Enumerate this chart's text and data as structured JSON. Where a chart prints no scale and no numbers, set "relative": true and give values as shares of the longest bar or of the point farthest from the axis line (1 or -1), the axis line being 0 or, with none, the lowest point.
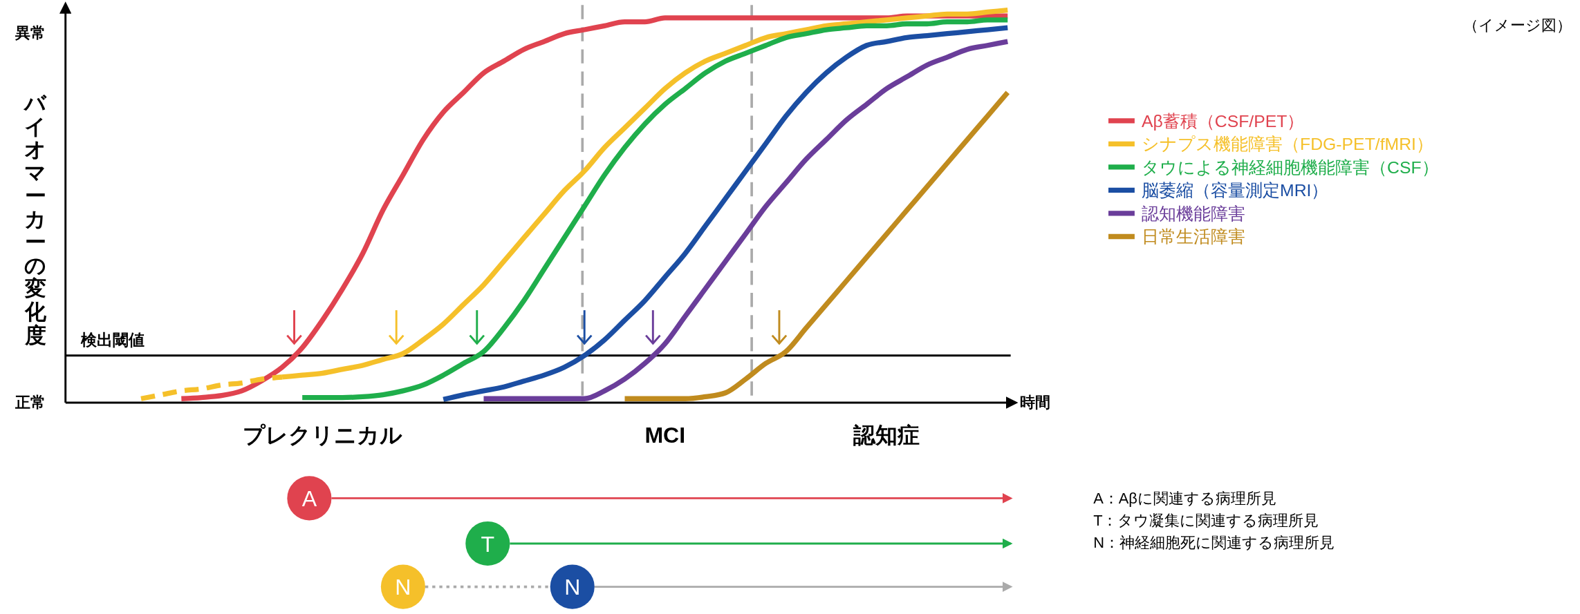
{
  "chart_data": {
    "type": "line",
    "relative": true,
    "ylabel": "バイオマーカーの変化度",
    "xlabel": "時間",
    "legend": "right",
    "categories": [
      null,
      null,
      null,
      null,
      null,
      null,
      null,
      null,
      null,
      "プレクリニカル",
      null,
      null,
      null,
      null,
      null,
      null,
      null,
      null,
      null,
      null,
      null,
      null,
      null,
      null,
      null,
      null,
      "MCI",
      null,
      null,
      null,
      null,
      null,
      null,
      null,
      null,
      null,
      null,
      "認知症",
      null,
      null,
      null,
      null,
      null,
      null
    ],
    "series": [
      {
        "name": "Aβ蓄積（CSF/PET）",
        "color": "#e0434f",
        "values": [
          null,
          null,
          0.01,
          0.013,
          0.018,
          0.03,
          0.056,
          0.09,
          0.14,
          0.21,
          0.29,
          0.38,
          0.49,
          0.58,
          0.67,
          0.74,
          0.79,
          0.84,
          0.87,
          0.9,
          0.92,
          0.94,
          0.95,
          0.96,
          0.97,
          0.97,
          0.98,
          0.98,
          0.98,
          0.98,
          0.98,
          0.98,
          0.98,
          0.98,
          0.98,
          0.98,
          0.98,
          0.98,
          0.985,
          0.985,
          0.985,
          0.985,
          0.985,
          0.985
        ]
      },
      {
        "color": "#f5c02a",
        "line_style": "dashed",
        "values": [
          0.01,
          0.02,
          0.03,
          0.035,
          0.045,
          0.05,
          0.06,
          0.065,
          null,
          null,
          null,
          null,
          null,
          null,
          null,
          null,
          null,
          null,
          null,
          null,
          null,
          null,
          null,
          null,
          null,
          null,
          null,
          null,
          null,
          null,
          null,
          null,
          null,
          null,
          null,
          null,
          null,
          null,
          null,
          null,
          null,
          null,
          null,
          null
        ]
      },
      {
        "name": "シナプス機能障害（FDG-PET/fMRI）",
        "color": "#f5c02a",
        "values": [
          null,
          null,
          null,
          null,
          null,
          null,
          null,
          0.065,
          0.07,
          0.075,
          0.085,
          0.095,
          0.11,
          0.125,
          0.16,
          0.2,
          0.25,
          0.3,
          0.36,
          0.42,
          0.48,
          0.54,
          0.59,
          0.65,
          0.7,
          0.75,
          0.8,
          0.84,
          0.87,
          0.89,
          0.91,
          0.93,
          0.94,
          0.95,
          0.96,
          0.965,
          0.97,
          0.975,
          0.98,
          0.985,
          0.99,
          0.99,
          0.995,
          1.0
        ]
      },
      {
        "name": "タウによる神経細胞機能障害（CSF）",
        "color": "#1fae4b",
        "values": [
          null,
          null,
          null,
          null,
          null,
          null,
          null,
          null,
          0.013,
          0.013,
          0.013,
          0.015,
          0.02,
          0.03,
          0.045,
          0.07,
          0.1,
          0.13,
          0.19,
          0.26,
          0.34,
          0.42,
          0.5,
          0.58,
          0.65,
          0.71,
          0.76,
          0.8,
          0.84,
          0.87,
          0.89,
          0.91,
          0.93,
          0.94,
          0.95,
          0.955,
          0.96,
          0.96,
          0.965,
          0.965,
          0.97,
          0.97,
          0.975,
          0.975
        ]
      },
      {
        "name": "脳萎縮（容量測定MRI）",
        "color": "#1b4ea3",
        "values": [
          null,
          null,
          null,
          null,
          null,
          null,
          null,
          null,
          null,
          null,
          null,
          null,
          null,
          null,
          null,
          0.008,
          0.02,
          0.03,
          0.04,
          0.055,
          0.07,
          0.09,
          0.12,
          0.16,
          0.21,
          0.26,
          0.32,
          0.38,
          0.45,
          0.52,
          0.59,
          0.66,
          0.73,
          0.79,
          0.84,
          0.88,
          0.91,
          0.92,
          0.93,
          0.935,
          0.94,
          0.945,
          0.95,
          0.955
        ]
      },
      {
        "name": "認知機能障害",
        "color": "#6a3d9a",
        "values": [
          null,
          null,
          null,
          null,
          null,
          null,
          null,
          null,
          null,
          null,
          null,
          null,
          null,
          null,
          null,
          null,
          null,
          0.01,
          0.01,
          0.01,
          0.01,
          0.01,
          0.01,
          0.03,
          0.06,
          0.1,
          0.15,
          0.22,
          0.29,
          0.36,
          0.43,
          0.5,
          0.56,
          0.62,
          0.67,
          0.72,
          0.76,
          0.8,
          0.83,
          0.86,
          0.88,
          0.9,
          0.91,
          0.92
        ]
      },
      {
        "name": "日常生活障害",
        "color": "#c08b1e",
        "values": [
          null,
          null,
          null,
          null,
          null,
          null,
          null,
          null,
          null,
          null,
          null,
          null,
          null,
          null,
          null,
          null,
          null,
          null,
          null,
          null,
          null,
          null,
          null,
          null,
          0.01,
          0.01,
          0.01,
          0.01,
          0.015,
          0.025,
          0.06,
          0.1,
          0.13,
          0.19,
          0.25,
          0.31,
          0.37,
          0.43,
          0.49,
          0.55,
          0.61,
          0.67,
          0.73,
          0.79
        ]
      }
    ],
    "ref_lines": [
      {
        "axis": "y",
        "value": 0.12,
        "label": "検出閾値",
        "color": "#000000",
        "line_style": "solid"
      }
    ],
    "annotations": [
      "異常",
      "正常",
      "（イメージ図）",
      "A",
      "T",
      "N",
      "N",
      "A：Aβに関連する病理所見",
      "T：タウ凝集に関連する病理所見",
      "N：神経細胞死に関連する病理所見"
    ]
  }
}
